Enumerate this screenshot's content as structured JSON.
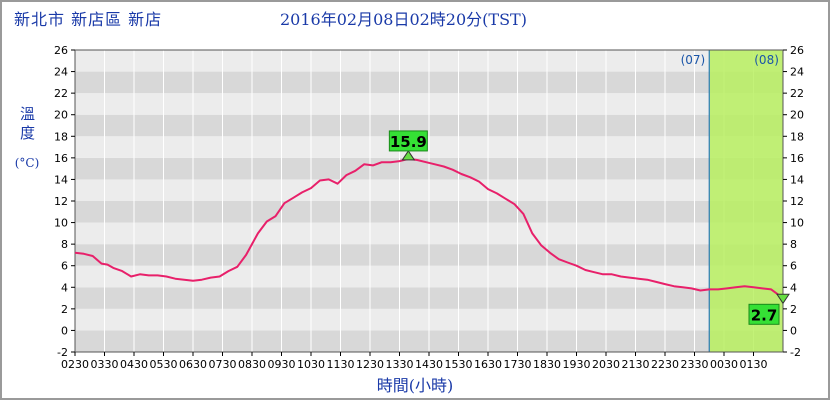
{
  "header": {
    "location": "新北市 新店區 新店",
    "timestamp": "2016年02月08日02時20分(TST)"
  },
  "axis_labels": {
    "y_title": "溫度",
    "y_unit": "(°C)",
    "x_title": "時間(小時)"
  },
  "colors": {
    "line": "#e8206a",
    "band_dark": "#d8d8d8",
    "band_light": "#ececec",
    "highlight_fill": "#b8f060",
    "highlight_border": "#2a7ab8",
    "label_box": "#35e035"
  },
  "chart_data": {
    "type": "line",
    "title": "",
    "xlabel": "時間(小時)",
    "ylabel": "溫度 (°C)",
    "ylim": [
      -2,
      26
    ],
    "yticks": [
      -2,
      0,
      2,
      4,
      6,
      8,
      10,
      12,
      14,
      16,
      18,
      20,
      22,
      24,
      26
    ],
    "xlim": [
      0,
      24
    ],
    "xticks": [
      "0230",
      "0330",
      "0430",
      "0530",
      "0630",
      "0730",
      "0830",
      "0930",
      "1030",
      "1130",
      "1230",
      "1330",
      "1430",
      "1530",
      "1630",
      "1730",
      "1830",
      "1930",
      "2030",
      "2130",
      "2230",
      "2330",
      "0030",
      "0130"
    ],
    "x_units": "hours since 02:30",
    "day_markers": [
      {
        "label": "(07)",
        "x": 21.5
      },
      {
        "label": "(08)",
        "x": 21.5
      }
    ],
    "highlight_range": [
      21.5,
      24.0
    ],
    "series": [
      {
        "name": "",
        "x": [
          0,
          0.3,
          0.6,
          0.9,
          1.1,
          1.3,
          1.6,
          1.9,
          2.2,
          2.5,
          2.8,
          3.1,
          3.4,
          3.7,
          4.0,
          4.3,
          4.6,
          4.9,
          5.2,
          5.5,
          5.8,
          6.0,
          6.2,
          6.5,
          6.8,
          7.1,
          7.4,
          7.7,
          8.0,
          8.3,
          8.6,
          8.9,
          9.2,
          9.5,
          9.8,
          10.1,
          10.4,
          10.7,
          11.0,
          11.3,
          11.6,
          11.9,
          12.2,
          12.5,
          12.8,
          13.1,
          13.4,
          13.7,
          14.0,
          14.3,
          14.6,
          14.9,
          15.2,
          15.5,
          15.8,
          16.1,
          16.4,
          16.7,
          17.0,
          17.3,
          17.6,
          17.9,
          18.2,
          18.5,
          18.8,
          19.1,
          19.4,
          19.7,
          20.0,
          20.3,
          20.6,
          20.9,
          21.2,
          21.5,
          21.8,
          22.1,
          22.4,
          22.7,
          23.0,
          23.3,
          23.6,
          23.9,
          24.0
        ],
        "y": [
          7.2,
          7.1,
          6.9,
          6.2,
          6.1,
          5.8,
          5.5,
          5.0,
          5.2,
          5.1,
          5.1,
          5.0,
          4.8,
          4.7,
          4.6,
          4.7,
          4.9,
          5.0,
          5.5,
          5.9,
          7.0,
          8.0,
          9.0,
          10.1,
          10.6,
          11.8,
          12.3,
          12.8,
          13.2,
          13.9,
          14.0,
          13.6,
          14.4,
          14.8,
          15.4,
          15.3,
          15.6,
          15.6,
          15.7,
          15.9,
          15.8,
          15.6,
          15.4,
          15.2,
          14.9,
          14.5,
          14.2,
          13.8,
          13.1,
          12.7,
          12.2,
          11.7,
          10.8,
          9.0,
          7.9,
          7.2,
          6.6,
          6.3,
          6.0,
          5.6,
          5.4,
          5.2,
          5.2,
          5.0,
          4.9,
          4.8,
          4.7,
          4.5,
          4.3,
          4.1,
          4.0,
          3.9,
          3.7,
          3.8,
          3.8,
          3.9,
          4.0,
          4.1,
          4.0,
          3.9,
          3.8,
          3.2,
          2.7
        ]
      }
    ],
    "annotations": [
      {
        "label": "15.9",
        "x": 11.3,
        "y": 15.9,
        "kind": "max"
      },
      {
        "label": "2.7",
        "x": 24.0,
        "y": 2.7,
        "kind": "min"
      }
    ]
  }
}
